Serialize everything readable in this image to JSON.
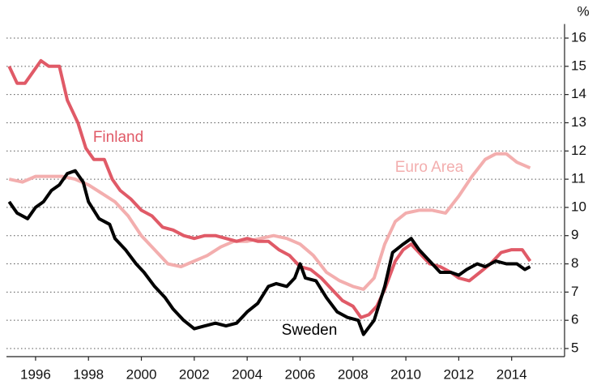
{
  "chart_data": {
    "type": "line",
    "y_label": "%",
    "xlim": [
      1994.9,
      2016
    ],
    "xticks": [
      1996,
      1998,
      2000,
      2002,
      2004,
      2006,
      2008,
      2010,
      2012,
      2014
    ],
    "ylim": [
      5,
      16.5
    ],
    "yticks": [
      5,
      6,
      7,
      8,
      9,
      10,
      11,
      12,
      13,
      14,
      15,
      16
    ],
    "grid": true,
    "series": [
      {
        "name": "Euro Area",
        "color": "#f3aeae",
        "x": [
          1995.0,
          1995.5,
          1996.0,
          1996.5,
          1997.0,
          1997.5,
          1998.0,
          1998.5,
          1999.0,
          1999.5,
          2000.0,
          2000.5,
          2001.0,
          2001.5,
          2002.0,
          2002.5,
          2003.0,
          2003.5,
          2004.0,
          2004.5,
          2005.0,
          2005.5,
          2006.0,
          2006.5,
          2007.0,
          2007.5,
          2008.0,
          2008.4,
          2008.8,
          2009.2,
          2009.6,
          2010.0,
          2010.5,
          2011.0,
          2011.5,
          2012.0,
          2012.5,
          2013.0,
          2013.4,
          2013.8,
          2014.2,
          2014.7
        ],
        "values": [
          11.0,
          10.9,
          11.1,
          11.1,
          11.1,
          11.0,
          10.8,
          10.5,
          10.2,
          9.7,
          9.0,
          8.5,
          8.0,
          7.9,
          8.1,
          8.3,
          8.6,
          8.8,
          8.8,
          8.9,
          9.0,
          8.9,
          8.7,
          8.3,
          7.7,
          7.4,
          7.2,
          7.1,
          7.5,
          8.7,
          9.5,
          9.8,
          9.9,
          9.9,
          9.8,
          10.4,
          11.1,
          11.7,
          11.9,
          11.9,
          11.6,
          11.4
        ]
      },
      {
        "name": "Finland",
        "color": "#e05a67",
        "x": [
          1995.0,
          1995.3,
          1995.6,
          1995.9,
          1996.2,
          1996.5,
          1996.9,
          1997.2,
          1997.6,
          1997.9,
          1998.2,
          1998.6,
          1998.9,
          1999.2,
          1999.6,
          2000.0,
          2000.4,
          2000.8,
          2001.2,
          2001.6,
          2002.0,
          2002.4,
          2002.8,
          2003.2,
          2003.6,
          2004.0,
          2004.4,
          2004.8,
          2005.2,
          2005.6,
          2006.0,
          2006.4,
          2006.8,
          2007.2,
          2007.6,
          2008.0,
          2008.3,
          2008.6,
          2008.9,
          2009.2,
          2009.6,
          2009.9,
          2010.2,
          2010.6,
          2010.9,
          2011.3,
          2011.7,
          2012.0,
          2012.4,
          2012.8,
          2013.2,
          2013.6,
          2014.0,
          2014.4,
          2014.7
        ],
        "values": [
          15.0,
          14.4,
          14.4,
          14.8,
          15.2,
          15.0,
          15.0,
          13.8,
          13.0,
          12.1,
          11.7,
          11.7,
          11.0,
          10.6,
          10.3,
          9.9,
          9.7,
          9.3,
          9.2,
          9.0,
          8.9,
          9.0,
          9.0,
          8.9,
          8.8,
          8.9,
          8.8,
          8.8,
          8.5,
          8.3,
          7.9,
          7.8,
          7.5,
          7.1,
          6.7,
          6.5,
          6.1,
          6.2,
          6.5,
          7.1,
          8.1,
          8.5,
          8.7,
          8.3,
          8.0,
          7.9,
          7.7,
          7.5,
          7.4,
          7.7,
          8.0,
          8.4,
          8.5,
          8.5,
          8.1
        ]
      },
      {
        "name": "Sweden",
        "color": "#000000",
        "x": [
          1995.0,
          1995.3,
          1995.7,
          1996.0,
          1996.3,
          1996.6,
          1996.9,
          1997.2,
          1997.5,
          1997.8,
          1998.0,
          1998.4,
          1998.8,
          1999.0,
          1999.4,
          1999.8,
          2000.1,
          2000.5,
          2000.9,
          2001.2,
          2001.6,
          2002.0,
          2002.4,
          2002.8,
          2003.2,
          2003.6,
          2004.0,
          2004.4,
          2004.8,
          2005.1,
          2005.5,
          2005.8,
          2006.0,
          2006.2,
          2006.6,
          2007.0,
          2007.4,
          2007.8,
          2008.2,
          2008.4,
          2008.8,
          2009.2,
          2009.5,
          2009.9,
          2010.2,
          2010.5,
          2010.9,
          2011.3,
          2011.7,
          2012.0,
          2012.3,
          2012.7,
          2013.0,
          2013.4,
          2013.8,
          2014.2,
          2014.5,
          2014.7
        ],
        "values": [
          10.2,
          9.8,
          9.6,
          10.0,
          10.2,
          10.6,
          10.8,
          11.2,
          11.3,
          10.9,
          10.2,
          9.6,
          9.4,
          8.9,
          8.5,
          8.0,
          7.7,
          7.2,
          6.8,
          6.4,
          6.0,
          5.7,
          5.8,
          5.9,
          5.8,
          5.9,
          6.3,
          6.6,
          7.2,
          7.3,
          7.2,
          7.5,
          8.0,
          7.5,
          7.4,
          6.8,
          6.3,
          6.1,
          6.0,
          5.5,
          6.0,
          7.2,
          8.4,
          8.7,
          8.9,
          8.5,
          8.1,
          7.7,
          7.7,
          7.6,
          7.8,
          8.0,
          7.9,
          8.1,
          8.0,
          8.0,
          7.8,
          7.9
        ]
      }
    ]
  }
}
